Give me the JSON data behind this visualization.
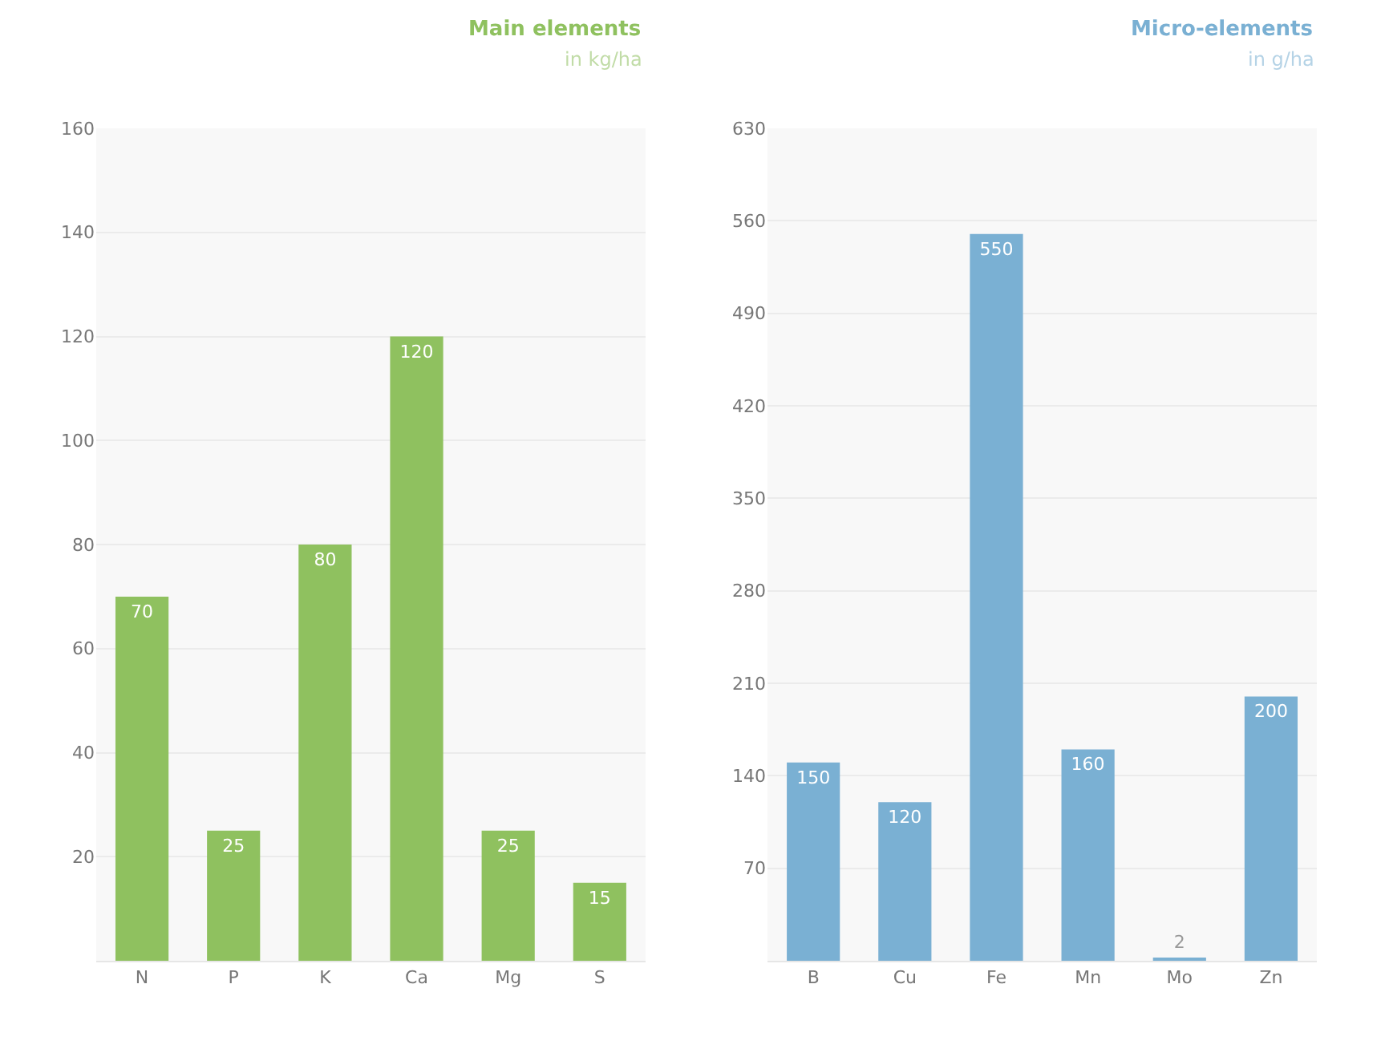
{
  "chart_data": [
    {
      "type": "bar",
      "title": "Main elements",
      "subtitle": "in kg/ha",
      "categories": [
        "N",
        "P",
        "K",
        "Ca",
        "Mg",
        "S"
      ],
      "values": [
        70,
        25,
        80,
        120,
        25,
        15
      ],
      "color": "#8fc15f",
      "ylim": [
        0,
        160
      ],
      "yticks": [
        20,
        40,
        60,
        80,
        100,
        120,
        140,
        160
      ],
      "grid": "y",
      "data_labels": true
    },
    {
      "type": "bar",
      "title": "Micro-elements",
      "subtitle": "in g/ha",
      "categories": [
        "B",
        "Cu",
        "Fe",
        "Mn",
        "Mo",
        "Zn"
      ],
      "values": [
        150,
        120,
        550,
        160,
        2,
        200
      ],
      "color": "#7ab0d3",
      "ylim": [
        0,
        630
      ],
      "yticks": [
        70,
        140,
        210,
        280,
        350,
        420,
        490,
        560,
        630
      ],
      "grid": "y",
      "data_labels": true
    }
  ]
}
